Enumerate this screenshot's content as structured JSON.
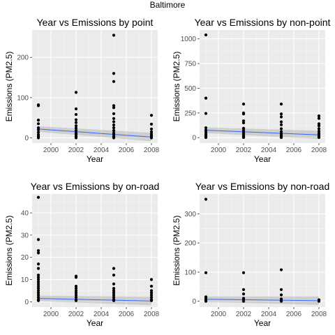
{
  "page_title": "Baltimore",
  "chart_data": [
    {
      "type": "scatter",
      "title": "Year vs Emissions by point",
      "xlabel": "Year",
      "ylabel": "Emissions (PM2.5)",
      "xlim": [
        1998.5,
        2008.5
      ],
      "ylim": [
        -13,
        268
      ],
      "xticks": [
        2000,
        2002,
        2004,
        2006,
        2008
      ],
      "yticks": [
        0,
        100,
        200
      ],
      "grid": true,
      "points": [
        [
          1999,
          82
        ],
        [
          1999,
          80
        ],
        [
          1999,
          44
        ],
        [
          1999,
          35
        ],
        [
          1999,
          25
        ],
        [
          1999,
          20
        ],
        [
          1999,
          14
        ],
        [
          1999,
          8
        ],
        [
          1999,
          4
        ],
        [
          1999,
          1
        ],
        [
          1999,
          0
        ],
        [
          2002,
          113
        ],
        [
          2002,
          72
        ],
        [
          2002,
          58
        ],
        [
          2002,
          45
        ],
        [
          2002,
          38
        ],
        [
          2002,
          30
        ],
        [
          2002,
          24
        ],
        [
          2002,
          18
        ],
        [
          2002,
          12
        ],
        [
          2002,
          8
        ],
        [
          2002,
          4
        ],
        [
          2002,
          1
        ],
        [
          2002,
          0
        ],
        [
          2005,
          255
        ],
        [
          2005,
          160
        ],
        [
          2005,
          140
        ],
        [
          2005,
          80
        ],
        [
          2005,
          75
        ],
        [
          2005,
          60
        ],
        [
          2005,
          48
        ],
        [
          2005,
          40
        ],
        [
          2005,
          32
        ],
        [
          2005,
          25
        ],
        [
          2005,
          18
        ],
        [
          2005,
          12
        ],
        [
          2005,
          8
        ],
        [
          2005,
          4
        ],
        [
          2005,
          1
        ],
        [
          2005,
          0
        ],
        [
          2008,
          56
        ],
        [
          2008,
          34
        ],
        [
          2008,
          22
        ],
        [
          2008,
          15
        ],
        [
          2008,
          10
        ],
        [
          2008,
          6
        ],
        [
          2008,
          3
        ],
        [
          2008,
          1
        ],
        [
          2008,
          0
        ]
      ],
      "trend": {
        "x": [
          1999,
          2008
        ],
        "y": [
          22,
          2
        ],
        "color": "#3366ff"
      }
    },
    {
      "type": "scatter",
      "title": "Year vs Emissions by non-point",
      "xlabel": "Year",
      "ylabel": "Emissions (PM2.5)",
      "xlim": [
        1998.5,
        2008.5
      ],
      "ylim": [
        -55,
        1090
      ],
      "xticks": [
        2000,
        2002,
        2004,
        2006,
        2008
      ],
      "yticks": [
        0,
        250,
        500,
        750,
        1000
      ],
      "grid": true,
      "points": [
        [
          1999,
          1040
        ],
        [
          1999,
          400
        ],
        [
          1999,
          245
        ],
        [
          1999,
          100
        ],
        [
          1999,
          75
        ],
        [
          1999,
          55
        ],
        [
          1999,
          35
        ],
        [
          1999,
          20
        ],
        [
          1999,
          10
        ],
        [
          1999,
          5
        ],
        [
          1999,
          1
        ],
        [
          2002,
          340
        ],
        [
          2002,
          250
        ],
        [
          2002,
          240
        ],
        [
          2002,
          170
        ],
        [
          2002,
          150
        ],
        [
          2002,
          95
        ],
        [
          2002,
          75
        ],
        [
          2002,
          55
        ],
        [
          2002,
          40
        ],
        [
          2002,
          25
        ],
        [
          2002,
          10
        ],
        [
          2002,
          5
        ],
        [
          2002,
          1
        ],
        [
          2005,
          340
        ],
        [
          2005,
          240
        ],
        [
          2005,
          210
        ],
        [
          2005,
          160
        ],
        [
          2005,
          130
        ],
        [
          2005,
          90
        ],
        [
          2005,
          60
        ],
        [
          2005,
          40
        ],
        [
          2005,
          25
        ],
        [
          2005,
          10
        ],
        [
          2005,
          5
        ],
        [
          2005,
          1
        ],
        [
          2008,
          220
        ],
        [
          2008,
          195
        ],
        [
          2008,
          140
        ],
        [
          2008,
          120
        ],
        [
          2008,
          90
        ],
        [
          2008,
          65
        ],
        [
          2008,
          45
        ],
        [
          2008,
          30
        ],
        [
          2008,
          15
        ],
        [
          2008,
          5
        ],
        [
          2008,
          1
        ]
      ],
      "trend": {
        "x": [
          1999,
          2008
        ],
        "y": [
          75,
          28
        ],
        "color": "#3366ff"
      }
    },
    {
      "type": "scatter",
      "title": "Year vs Emissions by on-road",
      "xlabel": "Year",
      "ylabel": "Emissions (PM2.5)",
      "xlim": [
        1998.5,
        2008.5
      ],
      "ylim": [
        -2.4,
        48.5
      ],
      "xticks": [
        2000,
        2002,
        2004,
        2006,
        2008
      ],
      "yticks": [
        0,
        10,
        20,
        30,
        40
      ],
      "grid": true,
      "points": [
        [
          1999,
          47
        ],
        [
          1999,
          28
        ],
        [
          1999,
          23
        ],
        [
          1999,
          22
        ],
        [
          1999,
          17
        ],
        [
          1999,
          15
        ],
        [
          1999,
          12
        ],
        [
          1999,
          11
        ],
        [
          1999,
          10
        ],
        [
          1999,
          9
        ],
        [
          1999,
          8
        ],
        [
          1999,
          7
        ],
        [
          1999,
          6
        ],
        [
          1999,
          5
        ],
        [
          1999,
          4
        ],
        [
          1999,
          3
        ],
        [
          1999,
          2
        ],
        [
          1999,
          1
        ],
        [
          1999,
          0.5
        ],
        [
          2002,
          11.5
        ],
        [
          2002,
          11
        ],
        [
          2002,
          7
        ],
        [
          2002,
          6
        ],
        [
          2002,
          5
        ],
        [
          2002,
          4
        ],
        [
          2002,
          3
        ],
        [
          2002,
          2
        ],
        [
          2002,
          1
        ],
        [
          2002,
          0.5
        ],
        [
          2005,
          15
        ],
        [
          2005,
          12
        ],
        [
          2005,
          8
        ],
        [
          2005,
          6
        ],
        [
          2005,
          5
        ],
        [
          2005,
          4
        ],
        [
          2005,
          3
        ],
        [
          2005,
          2
        ],
        [
          2005,
          1
        ],
        [
          2005,
          0.5
        ],
        [
          2008,
          10
        ],
        [
          2008,
          7
        ],
        [
          2008,
          5
        ],
        [
          2008,
          4
        ],
        [
          2008,
          3
        ],
        [
          2008,
          2
        ],
        [
          2008,
          1
        ],
        [
          2008,
          0.5
        ]
      ],
      "trend": {
        "x": [
          1999,
          2008
        ],
        "y": [
          1.5,
          0.3
        ],
        "color": "#3366ff"
      }
    },
    {
      "type": "scatter",
      "title": "Year vs Emissions by non-road",
      "xlabel": "Year",
      "ylabel": "Emissions (PM2.5)",
      "xlim": [
        1998.5,
        2008.5
      ],
      "ylim": [
        -20,
        368
      ],
      "xticks": [
        2000,
        2002,
        2004,
        2006,
        2008
      ],
      "yticks": [
        0,
        100,
        200,
        300
      ],
      "grid": true,
      "points": [
        [
          1999,
          350
        ],
        [
          1999,
          98
        ],
        [
          1999,
          15
        ],
        [
          1999,
          10
        ],
        [
          1999,
          5
        ],
        [
          1999,
          2
        ],
        [
          1999,
          0
        ],
        [
          2002,
          98
        ],
        [
          2002,
          40
        ],
        [
          2002,
          25
        ],
        [
          2002,
          10
        ],
        [
          2002,
          5
        ],
        [
          2002,
          0
        ],
        [
          2005,
          108
        ],
        [
          2005,
          40
        ],
        [
          2005,
          22
        ],
        [
          2005,
          8
        ],
        [
          2005,
          2
        ],
        [
          2005,
          0
        ],
        [
          2008,
          5
        ],
        [
          2008,
          2
        ],
        [
          2008,
          0
        ]
      ],
      "trend": {
        "x": [
          1999,
          2008
        ],
        "y": [
          7,
          2
        ],
        "color": "#3366ff"
      }
    }
  ]
}
